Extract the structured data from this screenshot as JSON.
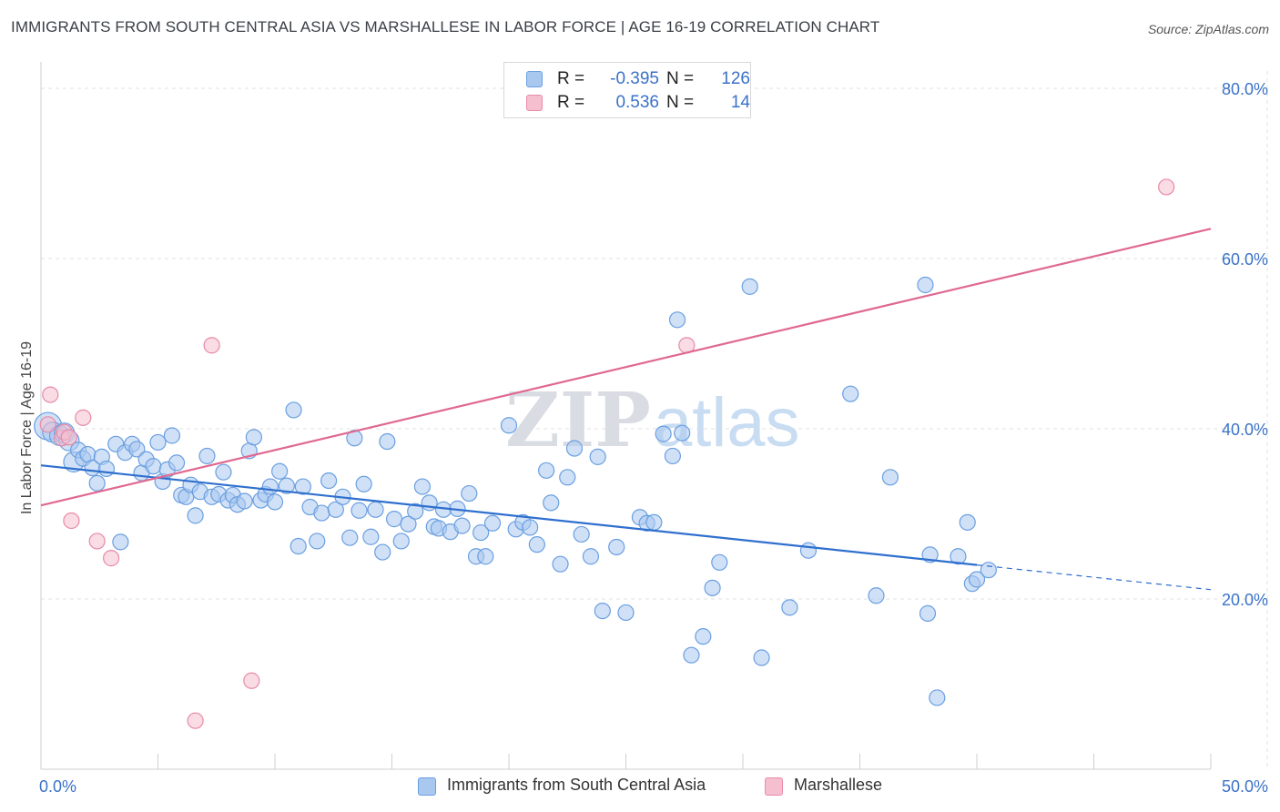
{
  "title": "IMMIGRANTS FROM SOUTH CENTRAL ASIA VS MARSHALLESE IN LABOR FORCE | AGE 16-19 CORRELATION CHART",
  "source": "Source: ZipAtlas.com",
  "watermark": {
    "zip": "ZIP",
    "atlas": "atlas"
  },
  "colors": {
    "blue": "#6a9fe0",
    "blue_fill": "#a9c8f0",
    "blue_line": "#2f6fce",
    "pink": "#e88aa8",
    "pink_fill": "#f5bfd0",
    "pink_line": "#e06891",
    "tick_label": "#3a72c8"
  },
  "legend_top": [
    {
      "r_label": "R =",
      "r_value": "-0.395",
      "n_label": "N =",
      "n_value": "126"
    },
    {
      "r_label": "R =",
      "r_value": "0.536",
      "n_label": "N =",
      "n_value": "14"
    }
  ],
  "legend_bottom": [
    {
      "label": "Immigrants from South Central Asia"
    },
    {
      "label": "Marshallese"
    }
  ],
  "chart_data": {
    "type": "scatter",
    "xlabel": "",
    "ylabel": "In Labor Force | Age 16-19",
    "xlim": [
      0,
      50
    ],
    "ylim": [
      0,
      80
    ],
    "x_tick_labels": [
      {
        "value": 0,
        "label": "0.0%"
      },
      {
        "value": 50,
        "label": "50.0%"
      }
    ],
    "y_tick_labels": [
      {
        "value": 20,
        "label": "20.0%"
      },
      {
        "value": 40,
        "label": "40.0%"
      },
      {
        "value": 60,
        "label": "60.0%"
      },
      {
        "value": 80,
        "label": "80.0%"
      }
    ],
    "grid": true,
    "legend_placement": "top-center and bottom",
    "series": [
      {
        "name": "Immigrants from South Central Asia",
        "color": "#6a9fe0",
        "trend": {
          "x0": 0,
          "y0": 35.7,
          "x1": 40,
          "y1": 24.0,
          "dash_to_x": 50,
          "dash_to_y": 21.1
        },
        "points": [
          [
            0.3,
            40.3
          ],
          [
            0.5,
            39.6
          ],
          [
            0.8,
            39.2
          ],
          [
            1.0,
            39.5
          ],
          [
            1.2,
            38.6
          ],
          [
            1.4,
            36.1
          ],
          [
            1.6,
            37.5
          ],
          [
            1.8,
            36.5
          ],
          [
            2.0,
            37.0
          ],
          [
            2.2,
            35.4
          ],
          [
            2.4,
            33.6
          ],
          [
            2.6,
            36.7
          ],
          [
            2.8,
            35.3
          ],
          [
            3.2,
            38.2
          ],
          [
            3.4,
            26.7
          ],
          [
            3.6,
            37.2
          ],
          [
            3.9,
            38.2
          ],
          [
            4.1,
            37.6
          ],
          [
            4.3,
            34.8
          ],
          [
            4.5,
            36.4
          ],
          [
            4.8,
            35.6
          ],
          [
            5.0,
            38.4
          ],
          [
            5.2,
            33.8
          ],
          [
            5.4,
            35.2
          ],
          [
            5.6,
            39.2
          ],
          [
            5.8,
            36.0
          ],
          [
            6.0,
            32.2
          ],
          [
            6.2,
            32.0
          ],
          [
            6.4,
            33.4
          ],
          [
            6.6,
            29.8
          ],
          [
            6.8,
            32.6
          ],
          [
            7.1,
            36.8
          ],
          [
            7.3,
            32.0
          ],
          [
            7.6,
            32.3
          ],
          [
            7.8,
            34.9
          ],
          [
            8.0,
            31.6
          ],
          [
            8.2,
            32.2
          ],
          [
            8.4,
            31.1
          ],
          [
            8.7,
            31.5
          ],
          [
            8.9,
            37.4
          ],
          [
            9.1,
            39.0
          ],
          [
            9.4,
            31.6
          ],
          [
            9.6,
            32.3
          ],
          [
            9.8,
            33.2
          ],
          [
            10.0,
            31.4
          ],
          [
            10.2,
            35.0
          ],
          [
            10.5,
            33.3
          ],
          [
            10.8,
            42.2
          ],
          [
            11.0,
            26.2
          ],
          [
            11.2,
            33.2
          ],
          [
            11.5,
            30.8
          ],
          [
            11.8,
            26.8
          ],
          [
            12.0,
            30.1
          ],
          [
            12.3,
            33.9
          ],
          [
            12.6,
            30.5
          ],
          [
            12.9,
            32.0
          ],
          [
            13.2,
            27.2
          ],
          [
            13.4,
            38.9
          ],
          [
            13.6,
            30.4
          ],
          [
            13.8,
            33.5
          ],
          [
            14.1,
            27.3
          ],
          [
            14.3,
            30.5
          ],
          [
            14.6,
            25.5
          ],
          [
            14.8,
            38.5
          ],
          [
            15.1,
            29.4
          ],
          [
            15.4,
            26.8
          ],
          [
            15.7,
            28.8
          ],
          [
            16.0,
            30.3
          ],
          [
            16.3,
            33.2
          ],
          [
            16.6,
            31.3
          ],
          [
            16.8,
            28.5
          ],
          [
            17.0,
            28.3
          ],
          [
            17.2,
            30.5
          ],
          [
            17.5,
            27.9
          ],
          [
            17.8,
            30.6
          ],
          [
            18.0,
            28.6
          ],
          [
            18.3,
            32.4
          ],
          [
            18.6,
            25.0
          ],
          [
            19.0,
            25.0
          ],
          [
            18.8,
            27.8
          ],
          [
            19.3,
            28.9
          ],
          [
            20.0,
            40.4
          ],
          [
            20.3,
            28.2
          ],
          [
            20.6,
            29.0
          ],
          [
            20.9,
            28.4
          ],
          [
            21.2,
            26.4
          ],
          [
            21.6,
            35.1
          ],
          [
            21.8,
            31.3
          ],
          [
            22.2,
            24.1
          ],
          [
            22.5,
            34.3
          ],
          [
            22.8,
            37.7
          ],
          [
            23.1,
            27.6
          ],
          [
            23.5,
            25.0
          ],
          [
            23.8,
            36.7
          ],
          [
            24.0,
            18.6
          ],
          [
            24.6,
            26.1
          ],
          [
            25.0,
            18.4
          ],
          [
            25.6,
            29.6
          ],
          [
            25.9,
            28.9
          ],
          [
            26.2,
            29.0
          ],
          [
            26.6,
            39.4
          ],
          [
            27.0,
            36.8
          ],
          [
            27.2,
            52.8
          ],
          [
            27.4,
            39.5
          ],
          [
            27.8,
            13.4
          ],
          [
            28.3,
            15.6
          ],
          [
            28.7,
            21.3
          ],
          [
            29.0,
            24.3
          ],
          [
            30.3,
            56.7
          ],
          [
            30.8,
            13.1
          ],
          [
            32.0,
            19.0
          ],
          [
            32.8,
            25.7
          ],
          [
            34.6,
            44.1
          ],
          [
            35.7,
            20.4
          ],
          [
            36.3,
            34.3
          ],
          [
            37.8,
            56.9
          ],
          [
            37.9,
            18.3
          ],
          [
            38.3,
            8.4
          ],
          [
            39.6,
            29.0
          ],
          [
            39.8,
            21.8
          ],
          [
            40.0,
            22.3
          ],
          [
            38.0,
            25.2
          ],
          [
            39.2,
            25.0
          ],
          [
            40.5,
            23.4
          ]
        ]
      },
      {
        "name": "Marshallese",
        "color": "#e88aa8",
        "trend": {
          "x0": 0,
          "y0": 31.0,
          "x1": 50,
          "y1": 63.5
        },
        "points": [
          [
            0.3,
            40.5
          ],
          [
            0.4,
            44.0
          ],
          [
            0.9,
            38.9
          ],
          [
            1.0,
            39.6
          ],
          [
            1.2,
            39.0
          ],
          [
            1.3,
            29.2
          ],
          [
            1.8,
            41.3
          ],
          [
            2.4,
            26.8
          ],
          [
            3.0,
            24.8
          ],
          [
            7.3,
            49.8
          ],
          [
            6.6,
            5.7
          ],
          [
            9.0,
            10.4
          ],
          [
            27.6,
            49.8
          ],
          [
            48.1,
            68.4
          ]
        ]
      }
    ]
  }
}
